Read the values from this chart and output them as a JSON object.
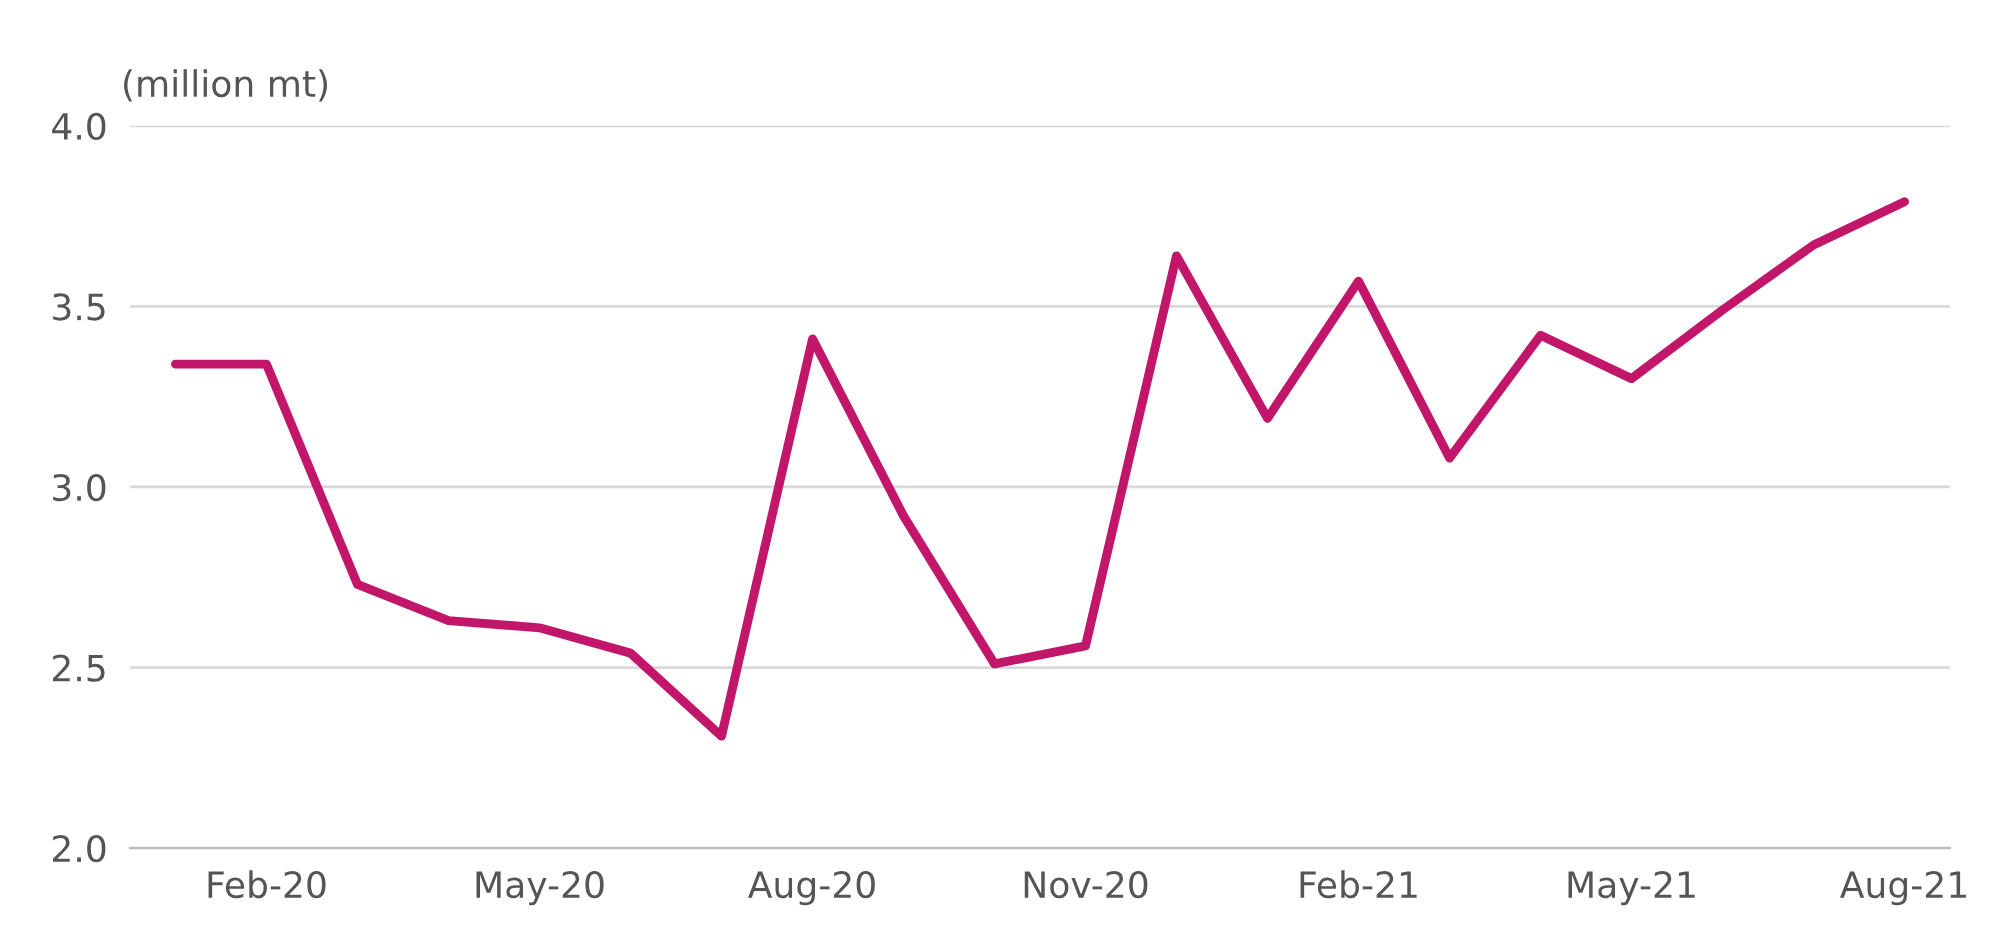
{
  "chart_data": {
    "type": "line",
    "ylabel": "(million mt)",
    "categories": [
      null,
      "Feb-20",
      null,
      null,
      "May-20",
      null,
      null,
      "Aug-20",
      null,
      null,
      "Nov-20",
      null,
      null,
      "Feb-21",
      null,
      null,
      "May-21",
      null,
      null,
      "Aug-21"
    ],
    "series": [
      {
        "color": "#c2166b",
        "values": [
          3.34,
          3.34,
          2.73,
          2.63,
          2.61,
          2.54,
          2.31,
          3.41,
          2.92,
          2.51,
          2.56,
          3.64,
          3.19,
          3.57,
          3.08,
          3.42,
          3.3,
          3.49,
          3.67,
          3.79
        ]
      }
    ],
    "ylim": [
      2,
      4
    ],
    "yticks": [
      {
        "value": 2,
        "label": "2.0"
      },
      {
        "value": 2.5,
        "label": "2.5"
      },
      {
        "value": 3,
        "label": "3.0"
      },
      {
        "value": 3.5,
        "label": "3.5"
      },
      {
        "value": 4,
        "label": "4.0"
      }
    ],
    "grid": "y",
    "marker": "none",
    "line_style": "solid"
  }
}
